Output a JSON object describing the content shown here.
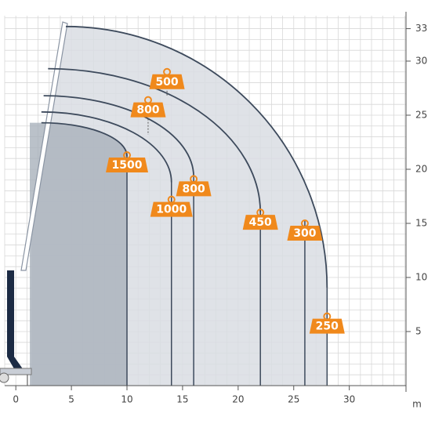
{
  "chart_data": {
    "type": "load-chart",
    "x_unit": "m",
    "xlim": [
      -1,
      35.1
    ],
    "ylim": [
      0,
      34.2
    ],
    "xticks": [
      0,
      5,
      10,
      15,
      20,
      25,
      30
    ],
    "yticks": [
      5,
      10,
      15,
      20,
      25,
      30,
      33
    ],
    "grid_step": 1,
    "envelope_color": "#d9dde3",
    "inner_color": "#a9b1bc",
    "line_color": "#3d4a5c",
    "tag_color": "#f0891c",
    "curves": [
      {
        "start": [
          4.5,
          33.2
        ],
        "end": [
          28,
          9
        ]
      },
      {
        "start": [
          2.9,
          29.3
        ],
        "end": [
          22,
          16
        ]
      },
      {
        "start": [
          2.5,
          26.8
        ],
        "end": [
          16,
          19.3
        ]
      },
      {
        "start": [
          2.3,
          25.3
        ],
        "end": [
          14,
          18.8
        ]
      },
      {
        "start": [
          2.3,
          24.3
        ],
        "end": [
          10,
          21.2
        ]
      }
    ],
    "radius_lines": [
      {
        "x": 10,
        "y": 21.2
      },
      {
        "x": 14,
        "y": 18.8
      },
      {
        "x": 16,
        "y": 19.3
      },
      {
        "x": 22,
        "y": 16
      },
      {
        "x": 26,
        "y": 15.3
      },
      {
        "x": 28,
        "y": 9
      }
    ],
    "tags": [
      {
        "label": "500",
        "x": 13.6,
        "y": 29,
        "to": 26.8
      },
      {
        "label": "800",
        "x": 11.9,
        "y": 26.4,
        "to": 23.2
      },
      {
        "label": "1500",
        "x": 10,
        "y": 21.3
      },
      {
        "label": "1000",
        "x": 14,
        "y": 17.2
      },
      {
        "label": "800",
        "x": 16,
        "y": 19.1
      },
      {
        "label": "450",
        "x": 22,
        "y": 16
      },
      {
        "label": "300",
        "x": 26,
        "y": 15
      },
      {
        "label": "250",
        "x": 28,
        "y": 6.4
      }
    ]
  }
}
